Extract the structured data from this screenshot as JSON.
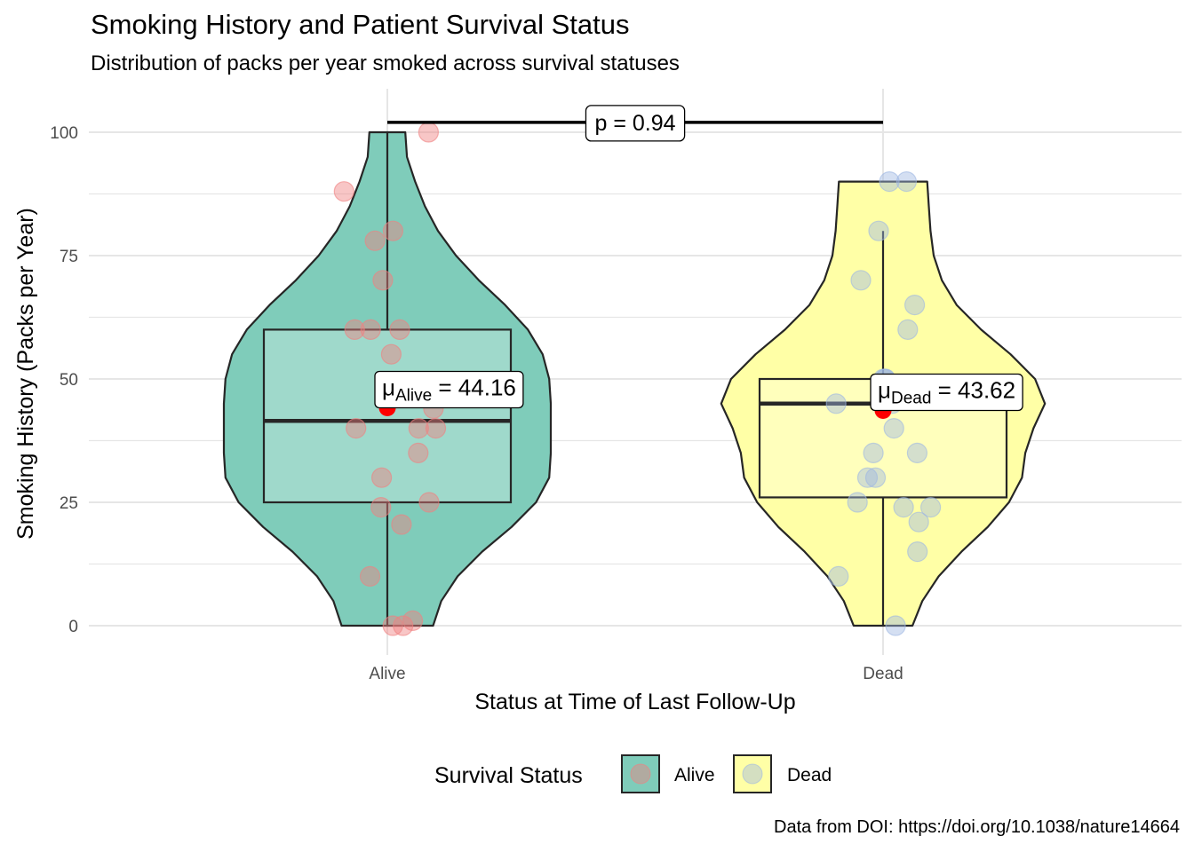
{
  "title": "Smoking History and Patient Survival Status",
  "subtitle": "Distribution of packs per year smoked across survival statuses",
  "caption": "Data from DOI: https://doi.org/10.1038/nature14664",
  "chart_data": {
    "type": "violin",
    "xlabel": "Status at Time of Last Follow-Up",
    "ylabel": "Smoking History (Packs per Year)",
    "categories": [
      "Alive",
      "Dead"
    ],
    "ylim": [
      -8,
      108
    ],
    "yticks": [
      0,
      25,
      50,
      75,
      100
    ],
    "grid": true,
    "legend": {
      "title": "Survival Status",
      "position": "bottom",
      "entries": [
        "Alive",
        "Dead"
      ]
    },
    "colors": {
      "Alive": "#7fccba",
      "Dead": "#ffffa6",
      "Alive_points": "#f08080",
      "Dead_points": "#9fb8e2",
      "mean_point": "#ff0000"
    },
    "groups": [
      {
        "name": "Alive",
        "mean": 44.16,
        "mean_label_sub": "Alive",
        "mean_label_value": "44.16",
        "box": {
          "min": 0,
          "q1": 25,
          "median": 41.5,
          "q3": 60,
          "max": 100
        },
        "points": [
          100,
          88,
          80,
          78,
          70,
          60,
          60,
          60,
          55,
          44,
          40,
          40,
          40,
          35,
          30,
          25,
          24,
          20.5,
          10,
          1,
          0,
          0
        ],
        "violin": [
          [
            0,
            0.28
          ],
          [
            5,
            0.33
          ],
          [
            10,
            0.43
          ],
          [
            15,
            0.58
          ],
          [
            20,
            0.76
          ],
          [
            25,
            0.91
          ],
          [
            30,
            0.99
          ],
          [
            35,
            1.0
          ],
          [
            40,
            1.0
          ],
          [
            45,
            1.0
          ],
          [
            50,
            0.99
          ],
          [
            55,
            0.95
          ],
          [
            60,
            0.86
          ],
          [
            65,
            0.72
          ],
          [
            70,
            0.56
          ],
          [
            75,
            0.42
          ],
          [
            80,
            0.31
          ],
          [
            85,
            0.23
          ],
          [
            90,
            0.17
          ],
          [
            95,
            0.12
          ],
          [
            100,
            0.11
          ]
        ]
      },
      {
        "name": "Dead",
        "mean": 43.62,
        "mean_label_sub": "Dead",
        "mean_label_value": "43.62",
        "box": {
          "min": 0,
          "q1": 26,
          "median": 45,
          "q3": 50,
          "max": 80
        },
        "points": [
          90,
          90,
          80,
          70,
          65,
          60,
          50,
          50,
          50,
          45,
          45,
          40,
          35,
          35,
          30,
          30,
          25,
          24,
          24,
          21,
          15,
          10,
          0
        ],
        "violin": [
          [
            0,
            0.18
          ],
          [
            5,
            0.24
          ],
          [
            10,
            0.34
          ],
          [
            15,
            0.48
          ],
          [
            20,
            0.64
          ],
          [
            25,
            0.77
          ],
          [
            30,
            0.85
          ],
          [
            35,
            0.87
          ],
          [
            40,
            0.92
          ],
          [
            45,
            0.99
          ],
          [
            50,
            0.93
          ],
          [
            55,
            0.78
          ],
          [
            60,
            0.6
          ],
          [
            65,
            0.45
          ],
          [
            70,
            0.36
          ],
          [
            75,
            0.31
          ],
          [
            80,
            0.29
          ],
          [
            85,
            0.28
          ],
          [
            90,
            0.27
          ]
        ]
      }
    ],
    "comparison": {
      "label": "p = 0.94",
      "between": [
        "Alive",
        "Dead"
      ],
      "y": 102
    }
  }
}
